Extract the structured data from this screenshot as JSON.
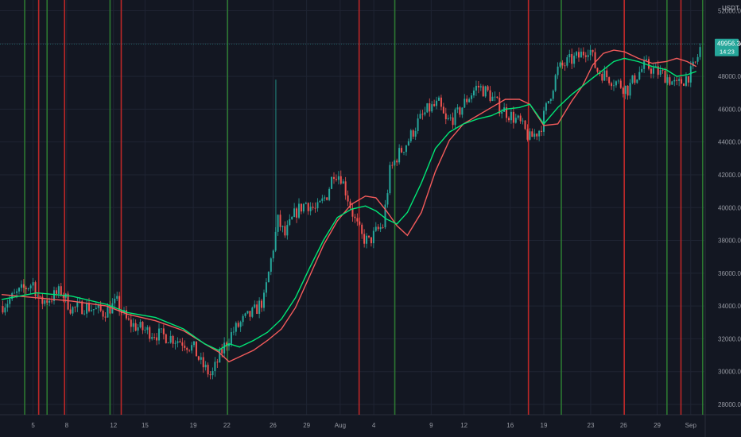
{
  "chart_data": {
    "type": "candlestick",
    "quote_unit": "USDT",
    "last_price": "49956.34",
    "countdown": "14:23",
    "colors": {
      "background": "#131722",
      "up": "#26a69a",
      "down": "#ef5350",
      "ema_fast": "#00e676",
      "ema_slow": "#f45b5b",
      "signal_buy": "#2e7d32",
      "signal_sell": "#c62828",
      "price_tag": "#26a69a"
    },
    "y_axis": {
      "min": 27000,
      "max": 53000,
      "ticks": [
        "52000.00",
        "50000.00",
        "48000.00",
        "46000.00",
        "44000.00",
        "42000.00",
        "40000.00",
        "38000.00",
        "36000.00",
        "34000.00",
        "32000.00",
        "30000.00",
        "28000.00"
      ]
    },
    "x_axis": {
      "t_min": 0,
      "t_max": 100,
      "ticks": [
        {
          "label": "5",
          "t": 4.5
        },
        {
          "label": "8",
          "t": 9.3
        },
        {
          "label": "12",
          "t": 16.0
        },
        {
          "label": "15",
          "t": 20.5
        },
        {
          "label": "19",
          "t": 27.4
        },
        {
          "label": "22",
          "t": 32.2
        },
        {
          "label": "26",
          "t": 38.8
        },
        {
          "label": "29",
          "t": 43.6
        },
        {
          "label": "Aug",
          "t": 48.4
        },
        {
          "label": "4",
          "t": 53.2
        },
        {
          "label": "9",
          "t": 61.4
        },
        {
          "label": "12",
          "t": 66.1
        },
        {
          "label": "16",
          "t": 72.7
        },
        {
          "label": "19",
          "t": 77.5
        },
        {
          "label": "23",
          "t": 84.2
        },
        {
          "label": "26",
          "t": 88.9
        },
        {
          "label": "29",
          "t": 93.7
        },
        {
          "label": "Sep",
          "t": 98.5
        }
      ]
    },
    "price_path": [
      [
        0,
        34000
      ],
      [
        3,
        35000
      ],
      [
        4.5,
        35400
      ],
      [
        5.5,
        34200
      ],
      [
        7,
        34500
      ],
      [
        8.5,
        34900
      ],
      [
        10,
        33800
      ],
      [
        12,
        34000
      ],
      [
        14.5,
        33600
      ],
      [
        16.5,
        34200
      ],
      [
        18,
        33000
      ],
      [
        20,
        32600
      ],
      [
        22,
        32300
      ],
      [
        24,
        32100
      ],
      [
        26,
        31800
      ],
      [
        27.5,
        31400
      ],
      [
        28.5,
        30500
      ],
      [
        30,
        29700
      ],
      [
        31,
        30800
      ],
      [
        32,
        31700
      ],
      [
        33,
        32400
      ],
      [
        34.5,
        33100
      ],
      [
        36,
        33600
      ],
      [
        37.5,
        34400
      ],
      [
        38.5,
        36800
      ],
      [
        39.5,
        39200
      ],
      [
        40.5,
        38300
      ],
      [
        42,
        39700
      ],
      [
        43.5,
        40300
      ],
      [
        45,
        39800
      ],
      [
        46.5,
        40800
      ],
      [
        47.5,
        42200
      ],
      [
        48.5,
        41900
      ],
      [
        49.5,
        40600
      ],
      [
        50.5,
        39200
      ],
      [
        51.5,
        38200
      ],
      [
        52.5,
        37900
      ],
      [
        53.5,
        38500
      ],
      [
        54.5,
        38900
      ],
      [
        55.5,
        42200
      ],
      [
        56.5,
        43100
      ],
      [
        58,
        44000
      ],
      [
        59.5,
        45200
      ],
      [
        61,
        46000
      ],
      [
        62.5,
        46300
      ],
      [
        63.5,
        45200
      ],
      [
        65,
        45600
      ],
      [
        66.5,
        46600
      ],
      [
        68,
        47400
      ],
      [
        69.5,
        47000
      ],
      [
        71,
        46200
      ],
      [
        72.5,
        45700
      ],
      [
        74,
        45200
      ],
      [
        75.5,
        44200
      ],
      [
        77,
        44800
      ],
      [
        78,
        46300
      ],
      [
        79.5,
        48400
      ],
      [
        81,
        48900
      ],
      [
        82.5,
        49200
      ],
      [
        84,
        49800
      ],
      [
        85,
        48400
      ],
      [
        86.5,
        48000
      ],
      [
        88,
        47600
      ],
      [
        89.5,
        47200
      ],
      [
        90.5,
        47900
      ],
      [
        92,
        48700
      ],
      [
        93.5,
        48300
      ],
      [
        95,
        48000
      ],
      [
        96.5,
        47400
      ],
      [
        97.5,
        47800
      ],
      [
        98.5,
        48200
      ],
      [
        99.3,
        48900
      ],
      [
        100,
        49956
      ]
    ],
    "ema_fast_path": [
      [
        0,
        34400
      ],
      [
        5,
        34800
      ],
      [
        10,
        34600
      ],
      [
        15,
        34100
      ],
      [
        18,
        33600
      ],
      [
        22,
        33300
      ],
      [
        26,
        32600
      ],
      [
        29,
        31700
      ],
      [
        31,
        31300
      ],
      [
        32.5,
        31700
      ],
      [
        34,
        31500
      ],
      [
        36,
        31900
      ],
      [
        38,
        32400
      ],
      [
        40,
        33200
      ],
      [
        42,
        34500
      ],
      [
        44,
        36300
      ],
      [
        46,
        38000
      ],
      [
        48,
        39400
      ],
      [
        50,
        39900
      ],
      [
        52,
        40100
      ],
      [
        53.5,
        39800
      ],
      [
        55,
        39300
      ],
      [
        56.5,
        39000
      ],
      [
        58,
        39700
      ],
      [
        60,
        41500
      ],
      [
        62,
        43600
      ],
      [
        64,
        44600
      ],
      [
        66,
        45100
      ],
      [
        68,
        45400
      ],
      [
        70,
        45600
      ],
      [
        72,
        46000
      ],
      [
        74,
        46100
      ],
      [
        75.5,
        46300
      ],
      [
        77.5,
        45100
      ],
      [
        79.5,
        46100
      ],
      [
        81.5,
        46900
      ],
      [
        83,
        47400
      ],
      [
        84.5,
        47900
      ],
      [
        86,
        48400
      ],
      [
        87.5,
        48900
      ],
      [
        89,
        49100
      ],
      [
        91,
        48900
      ],
      [
        93,
        48600
      ],
      [
        95,
        48400
      ],
      [
        96.5,
        48000
      ],
      [
        98,
        48100
      ],
      [
        99.3,
        48300
      ]
    ],
    "ema_slow_path": [
      [
        0,
        34700
      ],
      [
        5,
        34500
      ],
      [
        10,
        34300
      ],
      [
        15,
        34000
      ],
      [
        18,
        33500
      ],
      [
        22,
        33100
      ],
      [
        26,
        32500
      ],
      [
        29,
        31700
      ],
      [
        31,
        31200
      ],
      [
        32.5,
        30600
      ],
      [
        34,
        30900
      ],
      [
        36,
        31300
      ],
      [
        38,
        31900
      ],
      [
        40,
        32600
      ],
      [
        42,
        33900
      ],
      [
        44,
        35800
      ],
      [
        46,
        37700
      ],
      [
        48,
        39200
      ],
      [
        50,
        40200
      ],
      [
        52,
        40700
      ],
      [
        53.5,
        40600
      ],
      [
        55,
        39800
      ],
      [
        56.5,
        38900
      ],
      [
        58,
        38300
      ],
      [
        60,
        39700
      ],
      [
        62,
        42200
      ],
      [
        64,
        44100
      ],
      [
        66,
        45100
      ],
      [
        68,
        45600
      ],
      [
        70,
        46100
      ],
      [
        72,
        46600
      ],
      [
        74,
        46600
      ],
      [
        75.5,
        46300
      ],
      [
        77.5,
        45000
      ],
      [
        79.5,
        45100
      ],
      [
        81.5,
        46500
      ],
      [
        83,
        47400
      ],
      [
        84.5,
        48700
      ],
      [
        86,
        49400
      ],
      [
        87.5,
        49600
      ],
      [
        89,
        49500
      ],
      [
        91,
        49100
      ],
      [
        93,
        48800
      ],
      [
        95,
        48900
      ],
      [
        96.5,
        49100
      ],
      [
        98,
        48900
      ],
      [
        99.3,
        48600
      ]
    ],
    "signal_lines": [
      {
        "t": 3.3,
        "type": "buy"
      },
      {
        "t": 5.3,
        "type": "sell"
      },
      {
        "t": 6.5,
        "type": "buy"
      },
      {
        "t": 9.0,
        "type": "sell"
      },
      {
        "t": 15.5,
        "type": "buy"
      },
      {
        "t": 17.1,
        "type": "sell"
      },
      {
        "t": 32.3,
        "type": "buy"
      },
      {
        "t": 51.1,
        "type": "sell"
      },
      {
        "t": 56.2,
        "type": "buy"
      },
      {
        "t": 75.3,
        "type": "sell"
      },
      {
        "t": 80.0,
        "type": "buy"
      },
      {
        "t": 89.0,
        "type": "sell"
      },
      {
        "t": 95.1,
        "type": "buy"
      },
      {
        "t": 97.1,
        "type": "sell"
      },
      {
        "t": 100.2,
        "type": "buy"
      }
    ]
  }
}
